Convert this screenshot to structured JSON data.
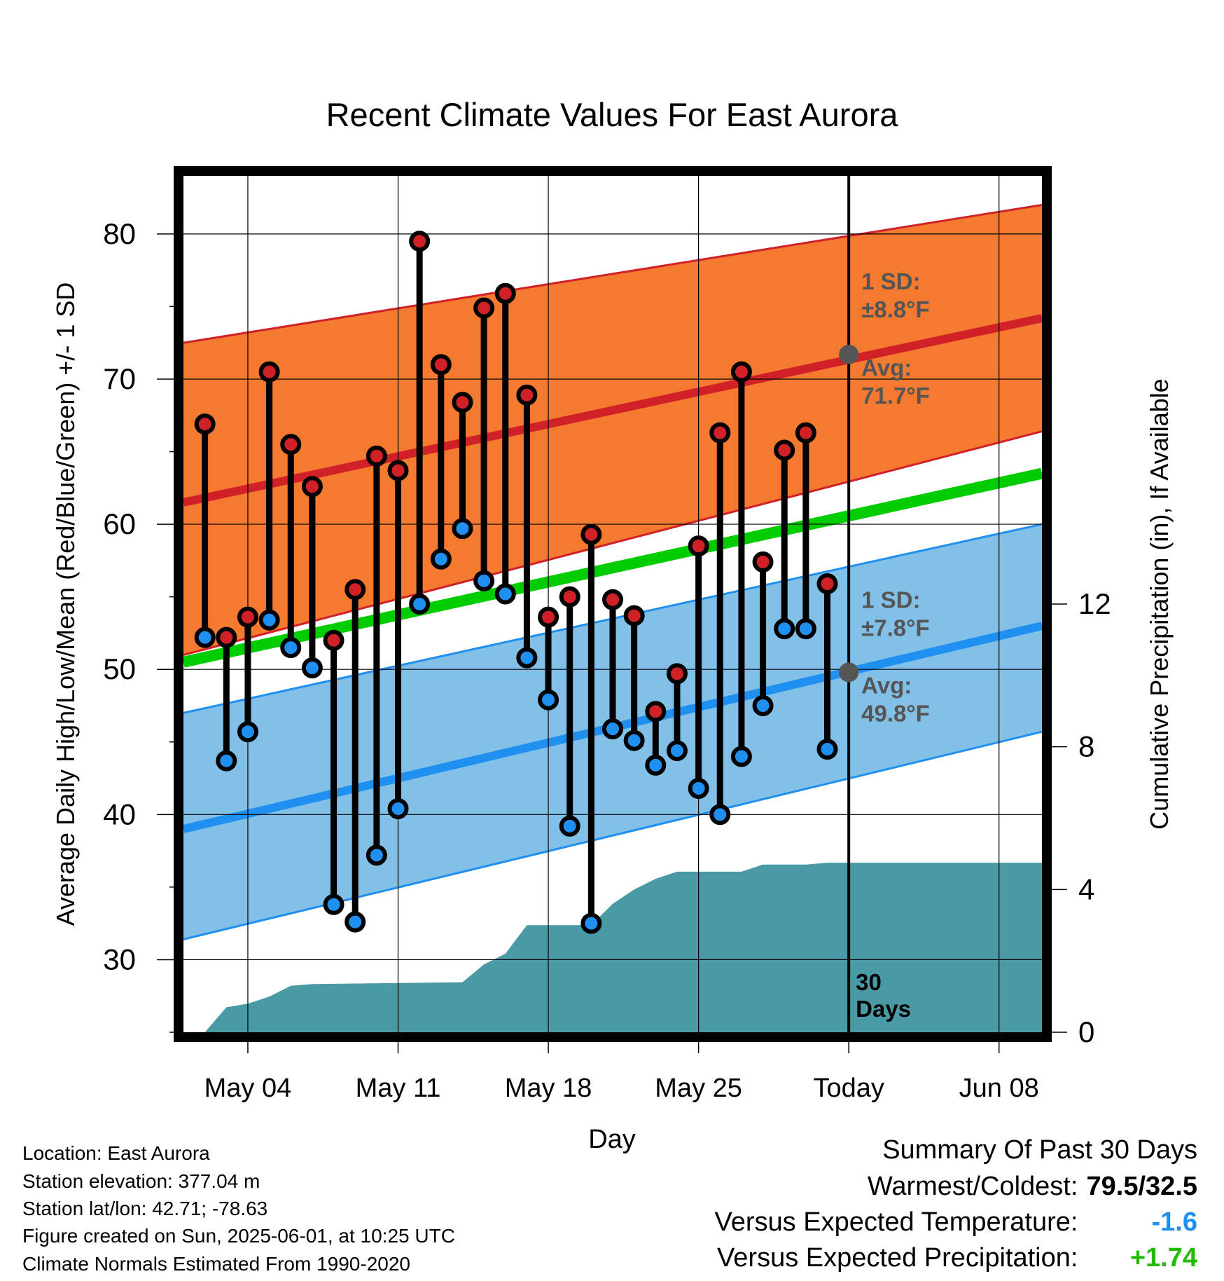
{
  "chart_data": {
    "type": "line",
    "title": "Recent Climate Values For East Aurora",
    "xlabel": "Day",
    "ylabel": "Average Daily High/Low/Mean (Red/Blue/Green) +/- 1 SD",
    "y2label": "Cumulative Precipitation (in), If Available",
    "ylim": [
      25,
      84
    ],
    "y2lim": [
      0,
      24
    ],
    "y_ticks": [
      30,
      40,
      50,
      60,
      70,
      80
    ],
    "y2_ticks": [
      0,
      4,
      8,
      12
    ],
    "x_dates": [
      "04-29",
      "04-30",
      "05-01",
      "05-02",
      "05-03",
      "05-04",
      "05-05",
      "05-06",
      "05-07",
      "05-08",
      "05-09",
      "05-10",
      "05-11",
      "05-12",
      "05-13",
      "05-14",
      "05-15",
      "05-16",
      "05-17",
      "05-18",
      "05-19",
      "05-20",
      "05-21",
      "05-22",
      "05-23",
      "05-24",
      "05-25",
      "05-26",
      "05-27",
      "05-28",
      "05-29",
      "05-30",
      "05-31",
      "06-01",
      "06-02",
      "06-03",
      "06-04",
      "06-05",
      "06-06",
      "06-07",
      "06-08",
      "06-09",
      "06-10",
      "06-11",
      "06-12"
    ],
    "x_range": [
      "05-01",
      "06-10"
    ],
    "x_ticks": [
      {
        "date": "05-04",
        "label": "May 04"
      },
      {
        "date": "05-11",
        "label": "May 11"
      },
      {
        "date": "05-18",
        "label": "May 18"
      },
      {
        "date": "05-25",
        "label": "May 25"
      },
      {
        "date": "06-01",
        "label": "Today"
      },
      {
        "date": "06-08",
        "label": "Jun 08"
      }
    ],
    "today": "06-01",
    "days_label": "30\nDays",
    "grid": true,
    "high_normal": {
      "start": [
        61.5,
        72.5,
        51.0
      ],
      "end": [
        74.2,
        82.0,
        66.4
      ],
      "avg_at_today": 71.7
    },
    "low_normal": {
      "start": [
        39.0,
        47.0,
        31.4
      ],
      "end": [
        53.0,
        60.0,
        45.7
      ],
      "avg_at_today": 49.8
    },
    "mean_normal": {
      "start": 50.5,
      "end": 63.5
    },
    "daily": [
      {
        "date": "05-02",
        "high": 66.9,
        "low": 52.2
      },
      {
        "date": "05-03",
        "high": 52.2,
        "low": 43.7
      },
      {
        "date": "05-04",
        "high": 53.6,
        "low": 45.7
      },
      {
        "date": "05-05",
        "high": 70.5,
        "low": 53.4
      },
      {
        "date": "05-06",
        "high": 65.5,
        "low": 51.5
      },
      {
        "date": "05-07",
        "high": 62.6,
        "low": 50.1
      },
      {
        "date": "05-08",
        "high": 52.0,
        "low": 33.8
      },
      {
        "date": "05-09",
        "high": 55.5,
        "low": 32.6
      },
      {
        "date": "05-10",
        "high": 64.7,
        "low": 37.2
      },
      {
        "date": "05-11",
        "high": 63.7,
        "low": 40.4
      },
      {
        "date": "05-12",
        "high": 79.5,
        "low": 54.5
      },
      {
        "date": "05-13",
        "high": 71.0,
        "low": 57.6
      },
      {
        "date": "05-14",
        "high": 68.4,
        "low": 59.7
      },
      {
        "date": "05-15",
        "high": 74.9,
        "low": 56.1
      },
      {
        "date": "05-16",
        "high": 75.9,
        "low": 55.2
      },
      {
        "date": "05-17",
        "high": 68.9,
        "low": 50.8
      },
      {
        "date": "05-18",
        "high": 53.6,
        "low": 47.9
      },
      {
        "date": "05-19",
        "high": 55.0,
        "low": 39.2
      },
      {
        "date": "05-20",
        "high": 59.3,
        "low": 32.5
      },
      {
        "date": "05-21",
        "high": 54.8,
        "low": 45.9
      },
      {
        "date": "05-22",
        "high": 53.7,
        "low": 45.1
      },
      {
        "date": "05-23",
        "high": 47.1,
        "low": 43.4
      },
      {
        "date": "05-24",
        "high": 49.7,
        "low": 44.4
      },
      {
        "date": "05-25",
        "high": 58.5,
        "low": 41.8
      },
      {
        "date": "05-26",
        "high": 66.3,
        "low": 40.0
      },
      {
        "date": "05-27",
        "high": 70.5,
        "low": 44.0
      },
      {
        "date": "05-28",
        "high": 57.4,
        "low": 47.5
      },
      {
        "date": "05-29",
        "high": 65.1,
        "low": 52.8
      },
      {
        "date": "05-30",
        "high": 66.3,
        "low": 52.8
      },
      {
        "date": "05-31",
        "high": 55.9,
        "low": 44.5
      }
    ],
    "precip_cumulative": [
      {
        "date": "05-02",
        "value": 0.0
      },
      {
        "date": "05-03",
        "value": 0.7
      },
      {
        "date": "05-04",
        "value": 0.8
      },
      {
        "date": "05-05",
        "value": 1.0
      },
      {
        "date": "05-06",
        "value": 1.3
      },
      {
        "date": "05-07",
        "value": 1.35
      },
      {
        "date": "05-14",
        "value": 1.4
      },
      {
        "date": "05-15",
        "value": 1.9
      },
      {
        "date": "05-16",
        "value": 2.2
      },
      {
        "date": "05-17",
        "value": 3.0
      },
      {
        "date": "05-20",
        "value": 3.0
      },
      {
        "date": "05-21",
        "value": 3.6
      },
      {
        "date": "05-22",
        "value": 4.0
      },
      {
        "date": "05-23",
        "value": 4.3
      },
      {
        "date": "05-24",
        "value": 4.5
      },
      {
        "date": "05-27",
        "value": 4.5
      },
      {
        "date": "05-28",
        "value": 4.7
      },
      {
        "date": "05-30",
        "value": 4.7
      },
      {
        "date": "05-31",
        "value": 4.75
      },
      {
        "date": "06-10",
        "value": 4.75
      }
    ],
    "annotations": {
      "high_sd": "1 SD:",
      "high_sd_value": "±8.8°F",
      "high_avg": "Avg:",
      "high_avg_value": "71.7°F",
      "low_sd": "1 SD:",
      "low_sd_value": "±7.8°F",
      "low_avg": "Avg:",
      "low_avg_value": "49.8°F"
    },
    "colors": {
      "high_band": "#f47a30",
      "high_line": "#cf2127",
      "low_band": "#82c0e8",
      "low_line": "#2090f0",
      "mean_line": "#00cc00",
      "precip": "#4a9aa6",
      "high_dot": "#cf2127",
      "low_dot": "#2090f0",
      "annotation": "#555555"
    }
  },
  "info": {
    "location": "Location: East Aurora",
    "elevation": "Station elevation: 377.04 m",
    "latlon": "Station lat/lon: 42.71; -78.63",
    "created": "Figure created on Sun, 2025-06-01, at 10:25 UTC",
    "normals": "Climate Normals Estimated From 1990-2020"
  },
  "summary": {
    "title": "Summary Of Past 30 Days",
    "warmest_label": "Warmest/Coldest:",
    "warmest_value": "79.5/32.5",
    "temp_label": "Versus Expected Temperature:",
    "temp_value": "-1.6",
    "temp_color": "#2090f0",
    "precip_label": "Versus Expected Precipitation:",
    "precip_value": "+1.74",
    "precip_color": "#22bb00"
  }
}
